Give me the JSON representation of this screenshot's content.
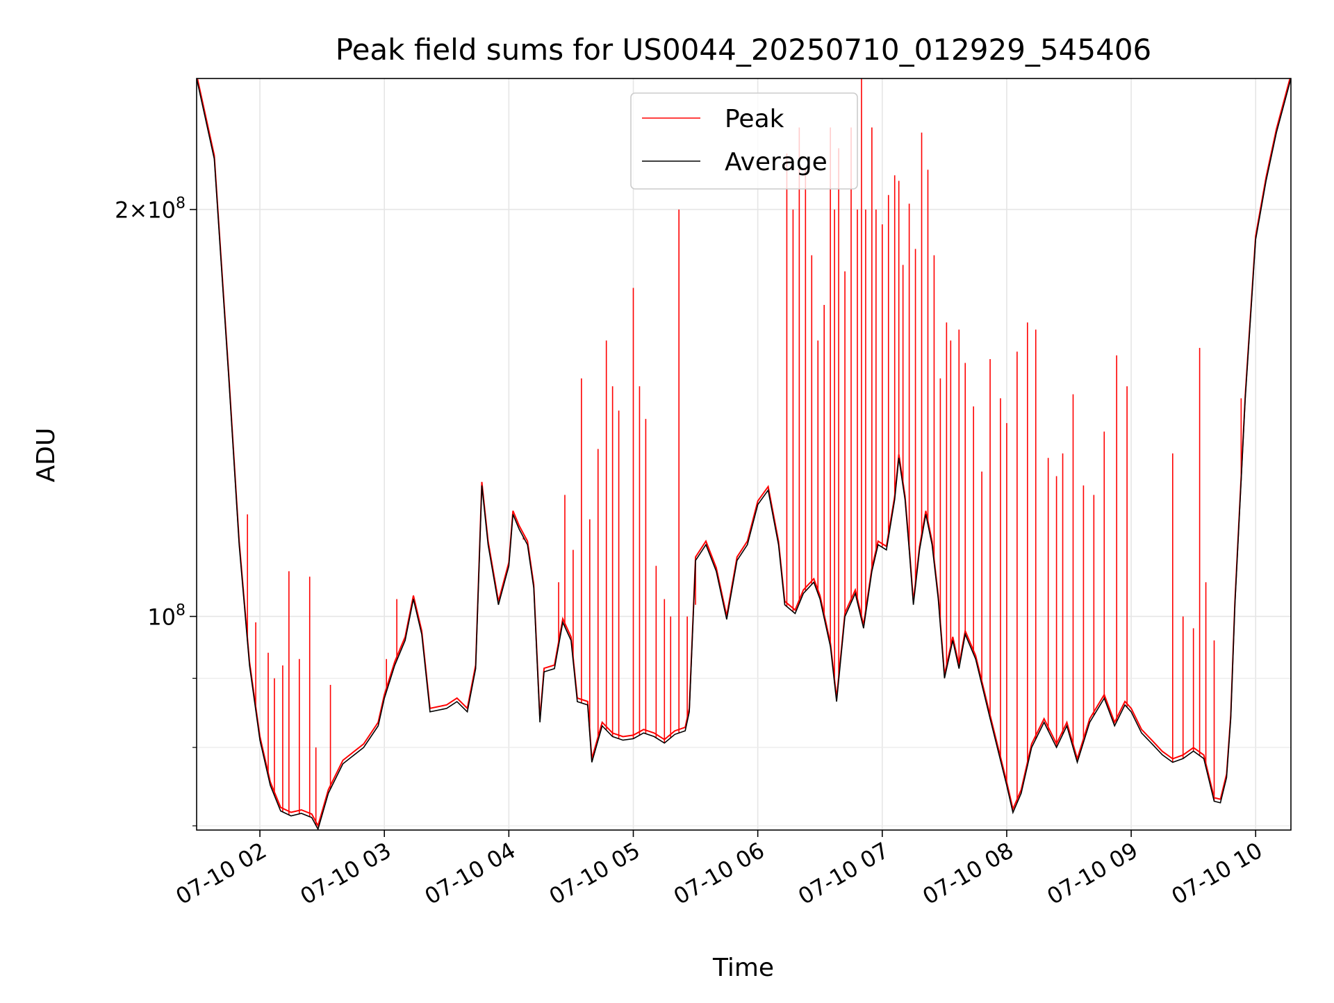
{
  "chart_data": {
    "type": "line",
    "title": "Peak field sums for US0044_20250710_012929_545406",
    "xlabel": "Time",
    "ylabel": "ADU",
    "y_scale": "log",
    "grid": true,
    "legend_position": "top-center",
    "xlim": [
      "2025-07-10 01:29:30",
      "2025-07-10 10:17:00"
    ],
    "ylim": [
      69500000,
      250000000
    ],
    "x_ticks": [
      {
        "value": "2025-07-10 02:00",
        "label": "07-10 02"
      },
      {
        "value": "2025-07-10 03:00",
        "label": "07-10 03"
      },
      {
        "value": "2025-07-10 04:00",
        "label": "07-10 04"
      },
      {
        "value": "2025-07-10 05:00",
        "label": "07-10 05"
      },
      {
        "value": "2025-07-10 06:00",
        "label": "07-10 06"
      },
      {
        "value": "2025-07-10 07:00",
        "label": "07-10 07"
      },
      {
        "value": "2025-07-10 08:00",
        "label": "07-10 08"
      },
      {
        "value": "2025-07-10 09:00",
        "label": "07-10 09"
      },
      {
        "value": "2025-07-10 10:00",
        "label": "07-10 10"
      }
    ],
    "y_ticks": [
      {
        "value": 100000000,
        "label": "10^8"
      },
      {
        "value": 200000000,
        "label": "2×10^8"
      }
    ],
    "y_minor_ticks": [
      70000000,
      80000000,
      90000000
    ],
    "series": [
      {
        "name": "Average",
        "color": "#000000",
        "points": [
          [
            "2025-07-10 01:29:30",
            250000000
          ],
          [
            "2025-07-10 01:38",
            218000000
          ],
          [
            "2025-07-10 01:45",
            150000000
          ],
          [
            "2025-07-10 01:50",
            113000000
          ],
          [
            "2025-07-10 01:55",
            92000000
          ],
          [
            "2025-07-10 02:00",
            81000000
          ],
          [
            "2025-07-10 02:05",
            75000000
          ],
          [
            "2025-07-10 02:10",
            71800000
          ],
          [
            "2025-07-10 02:15",
            71200000
          ],
          [
            "2025-07-10 02:20",
            71500000
          ],
          [
            "2025-07-10 02:25",
            71000000
          ],
          [
            "2025-07-10 02:28",
            69600000
          ],
          [
            "2025-07-10 02:33",
            74000000
          ],
          [
            "2025-07-10 02:40",
            77800000
          ],
          [
            "2025-07-10 02:50",
            80000000
          ],
          [
            "2025-07-10 02:57",
            83000000
          ],
          [
            "2025-07-10 03:00",
            87000000
          ],
          [
            "2025-07-10 03:05",
            92000000
          ],
          [
            "2025-07-10 03:10",
            96000000
          ],
          [
            "2025-07-10 03:14",
            103000000
          ],
          [
            "2025-07-10 03:18",
            97000000
          ],
          [
            "2025-07-10 03:22",
            85000000
          ],
          [
            "2025-07-10 03:30",
            85500000
          ],
          [
            "2025-07-10 03:35",
            86500000
          ],
          [
            "2025-07-10 03:40",
            85000000
          ],
          [
            "2025-07-10 03:44",
            91500000
          ],
          [
            "2025-07-10 03:47",
            125000000
          ],
          [
            "2025-07-10 03:50",
            113000000
          ],
          [
            "2025-07-10 03:55",
            102000000
          ],
          [
            "2025-07-10 04:00",
            109000000
          ],
          [
            "2025-07-10 04:02",
            119000000
          ],
          [
            "2025-07-10 04:05",
            116000000
          ],
          [
            "2025-07-10 04:09",
            113000000
          ],
          [
            "2025-07-10 04:12",
            105000000
          ],
          [
            "2025-07-10 04:15",
            83500000
          ],
          [
            "2025-07-10 04:17",
            91000000
          ],
          [
            "2025-07-10 04:22",
            91500000
          ],
          [
            "2025-07-10 04:26",
            99000000
          ],
          [
            "2025-07-10 04:30",
            96000000
          ],
          [
            "2025-07-10 04:33",
            86500000
          ],
          [
            "2025-07-10 04:38",
            86000000
          ],
          [
            "2025-07-10 04:40",
            78000000
          ],
          [
            "2025-07-10 04:45",
            83000000
          ],
          [
            "2025-07-10 04:50",
            81500000
          ],
          [
            "2025-07-10 04:55",
            81000000
          ],
          [
            "2025-07-10 05:00",
            81200000
          ],
          [
            "2025-07-10 05:05",
            82000000
          ],
          [
            "2025-07-10 05:10",
            81500000
          ],
          [
            "2025-07-10 05:15",
            80600000
          ],
          [
            "2025-07-10 05:20",
            81800000
          ],
          [
            "2025-07-10 05:25",
            82300000
          ],
          [
            "2025-07-10 05:27",
            85000000
          ],
          [
            "2025-07-10 05:30",
            110000000
          ],
          [
            "2025-07-10 05:35",
            113000000
          ],
          [
            "2025-07-10 05:40",
            108000000
          ],
          [
            "2025-07-10 05:45",
            99500000
          ],
          [
            "2025-07-10 05:50",
            110000000
          ],
          [
            "2025-07-10 05:55",
            113000000
          ],
          [
            "2025-07-10 06:00",
            121000000
          ],
          [
            "2025-07-10 06:05",
            124000000
          ],
          [
            "2025-07-10 06:10",
            113000000
          ],
          [
            "2025-07-10 06:13",
            102000000
          ],
          [
            "2025-07-10 06:18",
            100500000
          ],
          [
            "2025-07-10 06:22",
            104000000
          ],
          [
            "2025-07-10 06:27",
            106000000
          ],
          [
            "2025-07-10 06:30",
            103000000
          ],
          [
            "2025-07-10 06:35",
            95000000
          ],
          [
            "2025-07-10 06:38",
            86500000
          ],
          [
            "2025-07-10 06:42",
            100000000
          ],
          [
            "2025-07-10 06:47",
            104000000
          ],
          [
            "2025-07-10 06:51",
            98000000
          ],
          [
            "2025-07-10 06:55",
            108000000
          ],
          [
            "2025-07-10 06:58",
            113000000
          ],
          [
            "2025-07-10 07:02",
            112000000
          ],
          [
            "2025-07-10 07:06",
            122000000
          ],
          [
            "2025-07-10 07:08",
            131000000
          ],
          [
            "2025-07-10 07:11",
            122000000
          ],
          [
            "2025-07-10 07:13",
            112000000
          ],
          [
            "2025-07-10 07:15",
            102000000
          ],
          [
            "2025-07-10 07:18",
            112000000
          ],
          [
            "2025-07-10 07:21",
            119000000
          ],
          [
            "2025-07-10 07:24",
            113000000
          ],
          [
            "2025-07-10 07:27",
            103000000
          ],
          [
            "2025-07-10 07:30",
            90000000
          ],
          [
            "2025-07-10 07:34",
            96000000
          ],
          [
            "2025-07-10 07:37",
            91500000
          ],
          [
            "2025-07-10 07:40",
            97000000
          ],
          [
            "2025-07-10 07:45",
            93000000
          ],
          [
            "2025-07-10 07:52",
            84000000
          ],
          [
            "2025-07-10 08:00",
            75000000
          ],
          [
            "2025-07-10 08:03",
            71600000
          ],
          [
            "2025-07-10 08:07",
            74000000
          ],
          [
            "2025-07-10 08:12",
            80000000
          ],
          [
            "2025-07-10 08:18",
            83500000
          ],
          [
            "2025-07-10 08:24",
            80000000
          ],
          [
            "2025-07-10 08:29",
            83000000
          ],
          [
            "2025-07-10 08:34",
            78000000
          ],
          [
            "2025-07-10 08:40",
            83500000
          ],
          [
            "2025-07-10 08:47",
            87000000
          ],
          [
            "2025-07-10 08:52",
            83000000
          ],
          [
            "2025-07-10 08:57",
            86000000
          ],
          [
            "2025-07-10 09:00",
            85000000
          ],
          [
            "2025-07-10 09:05",
            82000000
          ],
          [
            "2025-07-10 09:10",
            80500000
          ],
          [
            "2025-07-10 09:15",
            79000000
          ],
          [
            "2025-07-10 09:20",
            78000000
          ],
          [
            "2025-07-10 09:25",
            78500000
          ],
          [
            "2025-07-10 09:30",
            79500000
          ],
          [
            "2025-07-10 09:35",
            78500000
          ],
          [
            "2025-07-10 09:40",
            73000000
          ],
          [
            "2025-07-10 09:43",
            72800000
          ],
          [
            "2025-07-10 09:46",
            76000000
          ],
          [
            "2025-07-10 09:48",
            84000000
          ],
          [
            "2025-07-10 09:50",
            102000000
          ],
          [
            "2025-07-10 09:55",
            145000000
          ],
          [
            "2025-07-10 10:00",
            190000000
          ],
          [
            "2025-07-10 10:05",
            210000000
          ],
          [
            "2025-07-10 10:10",
            228000000
          ],
          [
            "2025-07-10 10:17",
            250000000
          ]
        ]
      },
      {
        "name": "Peak",
        "color": "#ff0000",
        "spikes": [
          [
            "2025-07-10 01:54",
            119000000
          ],
          [
            "2025-07-10 01:58",
            99000000
          ],
          [
            "2025-07-10 02:04",
            94000000
          ],
          [
            "2025-07-10 02:07",
            90000000
          ],
          [
            "2025-07-10 02:11",
            92000000
          ],
          [
            "2025-07-10 02:14",
            108000000
          ],
          [
            "2025-07-10 02:19",
            93000000
          ],
          [
            "2025-07-10 02:24",
            107000000
          ],
          [
            "2025-07-10 02:27",
            80000000
          ],
          [
            "2025-07-10 02:34",
            89000000
          ],
          [
            "2025-07-10 03:01",
            93000000
          ],
          [
            "2025-07-10 03:06",
            103000000
          ],
          [
            "2025-07-10 04:07",
            114000000
          ],
          [
            "2025-07-10 04:24",
            106000000
          ],
          [
            "2025-07-10 04:27",
            123000000
          ],
          [
            "2025-07-10 04:31",
            112000000
          ],
          [
            "2025-07-10 04:35",
            150000000
          ],
          [
            "2025-07-10 04:39",
            118000000
          ],
          [
            "2025-07-10 04:43",
            133000000
          ],
          [
            "2025-07-10 04:47",
            160000000
          ],
          [
            "2025-07-10 04:50",
            148000000
          ],
          [
            "2025-07-10 04:53",
            142000000
          ],
          [
            "2025-07-10 05:00",
            175000000
          ],
          [
            "2025-07-10 05:03",
            148000000
          ],
          [
            "2025-07-10 05:06",
            140000000
          ],
          [
            "2025-07-10 05:11",
            109000000
          ],
          [
            "2025-07-10 05:15",
            103000000
          ],
          [
            "2025-07-10 05:18",
            100000000
          ],
          [
            "2025-07-10 05:22",
            200000000
          ],
          [
            "2025-07-10 05:26",
            100000000
          ],
          [
            "2025-07-10 05:30",
            102000000
          ],
          [
            "2025-07-10 06:14",
            220000000
          ],
          [
            "2025-07-10 06:17",
            200000000
          ],
          [
            "2025-07-10 06:20",
            230000000
          ],
          [
            "2025-07-10 06:23",
            215000000
          ],
          [
            "2025-07-10 06:26",
            185000000
          ],
          [
            "2025-07-10 06:29",
            160000000
          ],
          [
            "2025-07-10 06:32",
            170000000
          ],
          [
            "2025-07-10 06:35",
            230000000
          ],
          [
            "2025-07-10 06:37",
            200000000
          ],
          [
            "2025-07-10 06:39",
            222000000
          ],
          [
            "2025-07-10 06:42",
            180000000
          ],
          [
            "2025-07-10 06:45",
            230000000
          ],
          [
            "2025-07-10 06:48",
            200000000
          ],
          [
            "2025-07-10 06:50",
            250000000
          ],
          [
            "2025-07-10 06:52",
            200000000
          ],
          [
            "2025-07-10 06:55",
            230000000
          ],
          [
            "2025-07-10 06:57",
            200000000
          ],
          [
            "2025-07-10 07:00",
            195000000
          ],
          [
            "2025-07-10 07:03",
            205000000
          ],
          [
            "2025-07-10 07:06",
            212000000
          ],
          [
            "2025-07-10 07:08",
            210000000
          ],
          [
            "2025-07-10 07:10",
            182000000
          ],
          [
            "2025-07-10 07:13",
            202000000
          ],
          [
            "2025-07-10 07:16",
            187000000
          ],
          [
            "2025-07-10 07:19",
            228000000
          ],
          [
            "2025-07-10 07:22",
            214000000
          ],
          [
            "2025-07-10 07:25",
            185000000
          ],
          [
            "2025-07-10 07:28",
            150000000
          ],
          [
            "2025-07-10 07:31",
            165000000
          ],
          [
            "2025-07-10 07:33",
            160000000
          ],
          [
            "2025-07-10 07:37",
            163000000
          ],
          [
            "2025-07-10 07:40",
            154000000
          ],
          [
            "2025-07-10 07:44",
            143000000
          ],
          [
            "2025-07-10 07:48",
            128000000
          ],
          [
            "2025-07-10 07:52",
            155000000
          ],
          [
            "2025-07-10 07:57",
            145000000
          ],
          [
            "2025-07-10 08:00",
            139000000
          ],
          [
            "2025-07-10 08:05",
            157000000
          ],
          [
            "2025-07-10 08:10",
            165000000
          ],
          [
            "2025-07-10 08:14",
            163000000
          ],
          [
            "2025-07-10 08:20",
            131000000
          ],
          [
            "2025-07-10 08:24",
            127000000
          ],
          [
            "2025-07-10 08:27",
            132000000
          ],
          [
            "2025-07-10 08:32",
            146000000
          ],
          [
            "2025-07-10 08:37",
            125000000
          ],
          [
            "2025-07-10 08:42",
            123000000
          ],
          [
            "2025-07-10 08:47",
            137000000
          ],
          [
            "2025-07-10 08:53",
            156000000
          ],
          [
            "2025-07-10 08:58",
            148000000
          ],
          [
            "2025-07-10 09:20",
            132000000
          ],
          [
            "2025-07-10 09:25",
            100000000
          ],
          [
            "2025-07-10 09:30",
            98000000
          ],
          [
            "2025-07-10 09:33",
            158000000
          ],
          [
            "2025-07-10 09:36",
            106000000
          ],
          [
            "2025-07-10 09:40",
            96000000
          ],
          [
            "2025-07-10 09:53",
            145000000
          ]
        ]
      }
    ]
  }
}
